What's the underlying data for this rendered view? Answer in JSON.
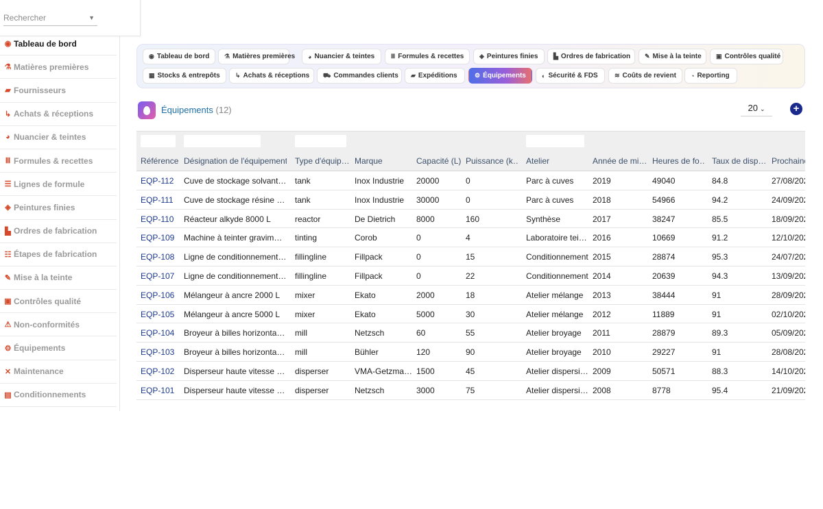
{
  "search": {
    "placeholder": "Rechercher"
  },
  "sidebar": {
    "items": [
      {
        "label": "Tableau de bord",
        "icon": "gauge-icon",
        "glyph": "◉",
        "active": true
      },
      {
        "label": "Matières premières",
        "icon": "flask-icon",
        "glyph": "⚗"
      },
      {
        "label": "Fournisseurs",
        "icon": "truck-icon",
        "glyph": "▰"
      },
      {
        "label": "Achats & réceptions",
        "icon": "dolly-icon",
        "glyph": "↳"
      },
      {
        "label": "Nuancier & teintes",
        "icon": "palette-icon",
        "glyph": "◕"
      },
      {
        "label": "Formules & recettes",
        "icon": "formula-icon",
        "glyph": "Ⅲ"
      },
      {
        "label": "Lignes de formule",
        "icon": "list-icon",
        "glyph": "☰"
      },
      {
        "label": "Peintures finies",
        "icon": "paint-bucket-icon",
        "glyph": "◈"
      },
      {
        "label": "Ordres de fabrication",
        "icon": "industry-icon",
        "glyph": "▙"
      },
      {
        "label": "Étapes de fabrication",
        "icon": "list-ol-icon",
        "glyph": "☷"
      },
      {
        "label": "Mise à la teinte",
        "icon": "eyedropper-icon",
        "glyph": "✎"
      },
      {
        "label": "Contrôles qualité",
        "icon": "clipboard-check-icon",
        "glyph": "▣"
      },
      {
        "label": "Non-conformités",
        "icon": "warning-icon",
        "glyph": "⚠"
      },
      {
        "label": "Équipements",
        "icon": "gears-icon",
        "glyph": "⚙"
      },
      {
        "label": "Maintenance",
        "icon": "tools-icon",
        "glyph": "✕"
      },
      {
        "label": "Conditionnements",
        "icon": "box-icon",
        "glyph": "▤"
      }
    ]
  },
  "tabs": [
    {
      "label": "Tableau de bord",
      "icon": "gauge-icon",
      "glyph": "◉"
    },
    {
      "label": "Matières premières",
      "icon": "flask-icon",
      "glyph": "⚗"
    },
    {
      "label": "Nuancier & teintes",
      "icon": "palette-icon",
      "glyph": "◕"
    },
    {
      "label": "Formules & recettes",
      "icon": "formula-icon",
      "glyph": "Ⅲ"
    },
    {
      "label": "Peintures finies",
      "icon": "paint-bucket-icon",
      "glyph": "◈"
    },
    {
      "label": "Ordres de fabrication",
      "icon": "industry-icon",
      "glyph": "▙"
    },
    {
      "label": "Mise à la teinte",
      "icon": "eyedropper-icon",
      "glyph": "✎"
    },
    {
      "label": "Contrôles qualité",
      "icon": "clipboard-check-icon",
      "glyph": "▣"
    },
    {
      "label": "Stocks & entrepôts",
      "icon": "warehouse-icon",
      "glyph": "▦"
    },
    {
      "label": "Achats & réceptions",
      "icon": "dolly-icon",
      "glyph": "↳"
    },
    {
      "label": "Commandes clients",
      "icon": "cart-icon",
      "glyph": "⛟"
    },
    {
      "label": "Expéditions",
      "icon": "truck-icon",
      "glyph": "▰"
    },
    {
      "label": "Équipements",
      "icon": "gears-icon",
      "glyph": "⚙",
      "active": true
    },
    {
      "label": "Sécurité & FDS",
      "icon": "shield-icon",
      "glyph": "◐"
    },
    {
      "label": "Coûts de revient",
      "icon": "coins-icon",
      "glyph": "≋"
    },
    {
      "label": "Reporting",
      "icon": "chart-pie-icon",
      "glyph": "◔"
    }
  ],
  "header": {
    "title": "Équipements",
    "count": "(12)",
    "page_size": "20",
    "add_icon": "plus-circle-icon",
    "logo_icon": "drop-icon"
  },
  "table": {
    "columns": [
      "Référence",
      "Désignation de l'équipement",
      "Type d'équip…",
      "Marque",
      "Capacité (L)",
      "Puissance (k…",
      "Atelier",
      "Année de mi…",
      "Heures de fo…",
      "Taux de disp…",
      "Prochaine"
    ],
    "rows": [
      [
        "EQP-112",
        "Cuve de stockage solvant 2…",
        "tank",
        "Inox Industrie",
        "20000",
        "0",
        "Parc à cuves",
        "2019",
        "49040",
        "84.8",
        "27/08/202"
      ],
      [
        "EQP-111",
        "Cuve de stockage résine 30…",
        "tank",
        "Inox Industrie",
        "30000",
        "0",
        "Parc à cuves",
        "2018",
        "54966",
        "94.2",
        "24/09/202"
      ],
      [
        "EQP-110",
        "Réacteur alkyde 8000 L",
        "reactor",
        "De Dietrich",
        "8000",
        "160",
        "Synthèse",
        "2017",
        "38247",
        "85.5",
        "18/09/202"
      ],
      [
        "EQP-109",
        "Machine à teinter gravimétri…",
        "tinting",
        "Corob",
        "0",
        "4",
        "Laboratoire teinte",
        "2016",
        "10669",
        "91.2",
        "12/10/202"
      ],
      [
        "EQP-108",
        "Ligne de conditionnement fû…",
        "fillingline",
        "Fillpack",
        "0",
        "15",
        "Conditionnement",
        "2015",
        "28874",
        "95.3",
        "24/07/202"
      ],
      [
        "EQP-107",
        "Ligne de conditionnement p…",
        "fillingline",
        "Fillpack",
        "0",
        "22",
        "Conditionnement",
        "2014",
        "20639",
        "94.3",
        "13/09/202"
      ],
      [
        "EQP-106",
        "Mélangeur à ancre 2000 L",
        "mixer",
        "Ekato",
        "2000",
        "18",
        "Atelier mélange",
        "2013",
        "38444",
        "91",
        "28/09/202"
      ],
      [
        "EQP-105",
        "Mélangeur à ancre 5000 L",
        "mixer",
        "Ekato",
        "5000",
        "30",
        "Atelier mélange",
        "2012",
        "11889",
        "91",
        "02/10/202"
      ],
      [
        "EQP-104",
        "Broyeur à billes horizontal 6…",
        "mill",
        "Netzsch",
        "60",
        "55",
        "Atelier broyage",
        "2011",
        "28879",
        "89.3",
        "05/09/202"
      ],
      [
        "EQP-103",
        "Broyeur à billes horizontal 1…",
        "mill",
        "Bühler",
        "120",
        "90",
        "Atelier broyage",
        "2010",
        "29227",
        "91",
        "28/08/202"
      ],
      [
        "EQP-102",
        "Disperseur haute vitesse 15…",
        "disperser",
        "VMA-Getzmann",
        "1500",
        "45",
        "Atelier dispersion",
        "2009",
        "50571",
        "88.3",
        "14/10/202"
      ],
      [
        "EQP-101",
        "Disperseur haute vitesse 30…",
        "disperser",
        "Netzsch",
        "3000",
        "75",
        "Atelier dispersion",
        "2008",
        "8778",
        "95.4",
        "21/09/202"
      ]
    ]
  },
  "colors": {
    "accent": "#1c3a8f",
    "sidebar_icon": "#d44a2a",
    "title": "#1e6fa8",
    "add_button": "#1a2a8c"
  }
}
